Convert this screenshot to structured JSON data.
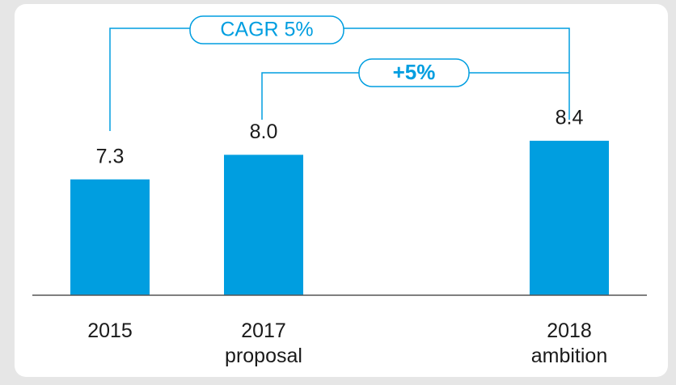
{
  "chart_data": {
    "type": "bar",
    "categories": [
      "2015",
      "2017\nproposal",
      "2018\nambition"
    ],
    "values": [
      7.3,
      8.0,
      8.4
    ],
    "value_labels": [
      "7.3",
      "8.0",
      "8.4"
    ],
    "color": "#009ee0",
    "ylim": [
      4,
      9
    ],
    "annotations": [
      "CAGR 5%",
      "+5%"
    ]
  }
}
